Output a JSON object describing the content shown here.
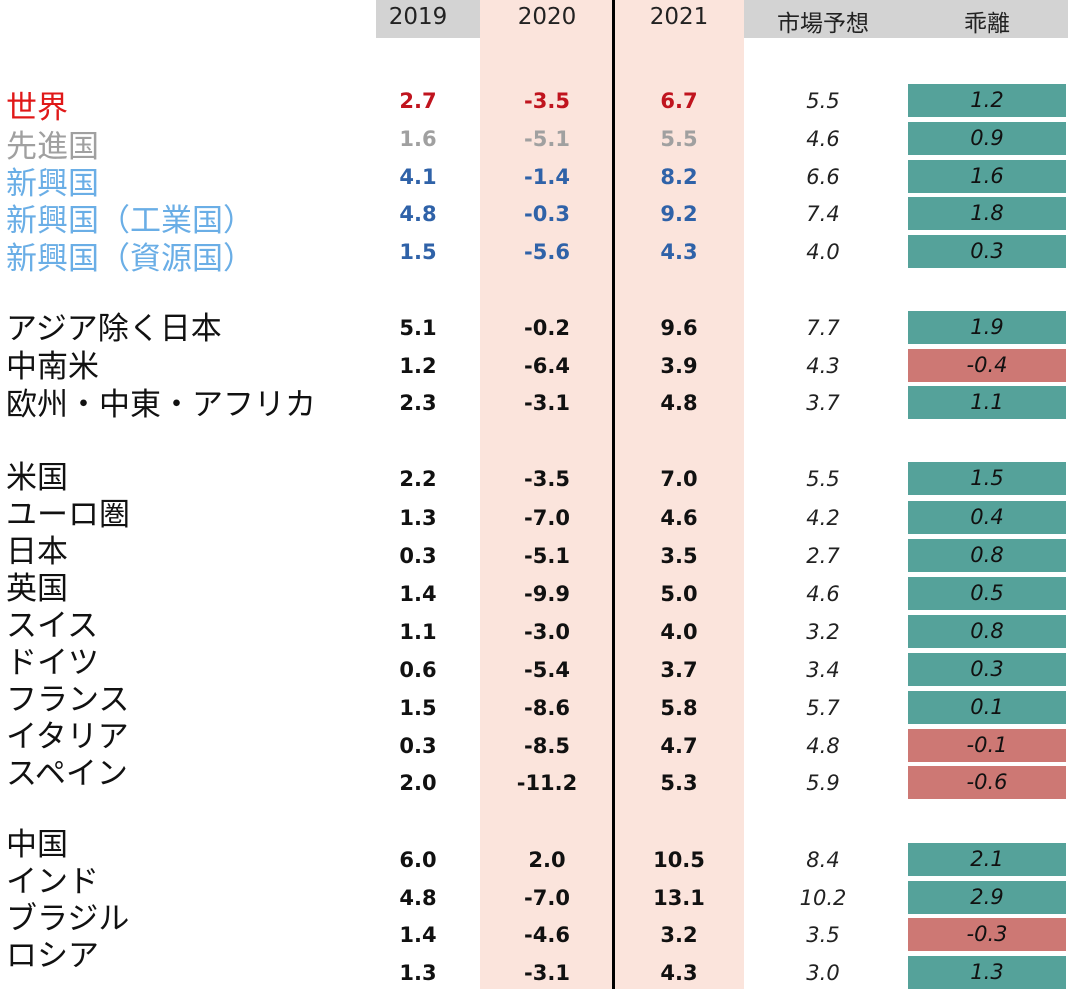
{
  "colors": {
    "world": "#e01818",
    "advanced": "#a0a0a0",
    "emerging": "#6aaee6",
    "default": "#111111",
    "world_values": "#c0141e",
    "emerging_values": "#2f62a8",
    "gap_positive": "#55a29a",
    "gap_negative": "#cd7874",
    "forecast_shade": "#fbe4dc",
    "header_gray": "#d3d3d3"
  },
  "chart_data": {
    "type": "table",
    "columns": [
      "2019",
      "2020",
      "2021",
      "市場予想",
      "乖離"
    ],
    "groups": [
      {
        "rows": [
          {
            "region": "世界",
            "color": "world",
            "y2019": "2.7",
            "y2020": "-3.5",
            "y2021": "6.7",
            "consensus": "5.5",
            "gap": "1.2"
          },
          {
            "region": "先進国",
            "color": "advanced",
            "y2019": "1.6",
            "y2020": "-5.1",
            "y2021": "5.5",
            "consensus": "4.6",
            "gap": "0.9"
          },
          {
            "region": "新興国",
            "color": "emerging",
            "y2019": "4.1",
            "y2020": "-1.4",
            "y2021": "8.2",
            "consensus": "6.6",
            "gap": "1.6"
          },
          {
            "region": "新興国（工業国）",
            "color": "emerging",
            "y2019": "4.8",
            "y2020": "-0.3",
            "y2021": "9.2",
            "consensus": "7.4",
            "gap": "1.8"
          },
          {
            "region": "新興国（資源国）",
            "color": "emerging",
            "y2019": "1.5",
            "y2020": "-5.6",
            "y2021": "4.3",
            "consensus": "4.0",
            "gap": "0.3"
          }
        ]
      },
      {
        "rows": [
          {
            "region": "アジア除く日本",
            "color": "default",
            "y2019": "5.1",
            "y2020": "-0.2",
            "y2021": "9.6",
            "consensus": "7.7",
            "gap": "1.9"
          },
          {
            "region": "中南米",
            "color": "default",
            "y2019": "1.2",
            "y2020": "-6.4",
            "y2021": "3.9",
            "consensus": "4.3",
            "gap": "-0.4"
          },
          {
            "region": "欧州・中東・アフリカ",
            "color": "default",
            "y2019": "2.3",
            "y2020": "-3.1",
            "y2021": "4.8",
            "consensus": "3.7",
            "gap": "1.1"
          }
        ]
      },
      {
        "rows": [
          {
            "region": "米国",
            "color": "default",
            "y2019": "2.2",
            "y2020": "-3.5",
            "y2021": "7.0",
            "consensus": "5.5",
            "gap": "1.5"
          },
          {
            "region": "ユーロ圏",
            "color": "default",
            "y2019": "1.3",
            "y2020": "-7.0",
            "y2021": "4.6",
            "consensus": "4.2",
            "gap": "0.4"
          },
          {
            "region": "日本",
            "color": "default",
            "y2019": "0.3",
            "y2020": "-5.1",
            "y2021": "3.5",
            "consensus": "2.7",
            "gap": "0.8"
          },
          {
            "region": "英国",
            "color": "default",
            "y2019": "1.4",
            "y2020": "-9.9",
            "y2021": "5.0",
            "consensus": "4.6",
            "gap": "0.5"
          },
          {
            "region": "スイス",
            "color": "default",
            "y2019": "1.1",
            "y2020": "-3.0",
            "y2021": "4.0",
            "consensus": "3.2",
            "gap": "0.8"
          },
          {
            "region": "ドイツ",
            "color": "default",
            "y2019": "0.6",
            "y2020": "-5.4",
            "y2021": "3.7",
            "consensus": "3.4",
            "gap": "0.3"
          },
          {
            "region": "フランス",
            "color": "default",
            "y2019": "1.5",
            "y2020": "-8.6",
            "y2021": "5.8",
            "consensus": "5.7",
            "gap": "0.1"
          },
          {
            "region": "イタリア",
            "color": "default",
            "y2019": "0.3",
            "y2020": "-8.5",
            "y2021": "4.7",
            "consensus": "4.8",
            "gap": "-0.1"
          },
          {
            "region": "スペイン",
            "color": "default",
            "y2019": "2.0",
            "y2020": "-11.2",
            "y2021": "5.3",
            "consensus": "5.9",
            "gap": "-0.6"
          }
        ]
      },
      {
        "rows": [
          {
            "region": "中国",
            "color": "default",
            "y2019": "6.0",
            "y2020": "2.0",
            "y2021": "10.5",
            "consensus": "8.4",
            "gap": "2.1"
          },
          {
            "region": "インド",
            "color": "default",
            "y2019": "4.8",
            "y2020": "-7.0",
            "y2021": "13.1",
            "consensus": "10.2",
            "gap": "2.9"
          },
          {
            "region": "ブラジル",
            "color": "default",
            "y2019": "1.4",
            "y2020": "-4.6",
            "y2021": "3.2",
            "consensus": "3.5",
            "gap": "-0.3"
          },
          {
            "region": "ロシア",
            "color": "default",
            "y2019": "1.3",
            "y2020": "-3.1",
            "y2021": "4.3",
            "consensus": "3.0",
            "gap": "1.3"
          }
        ]
      }
    ]
  }
}
